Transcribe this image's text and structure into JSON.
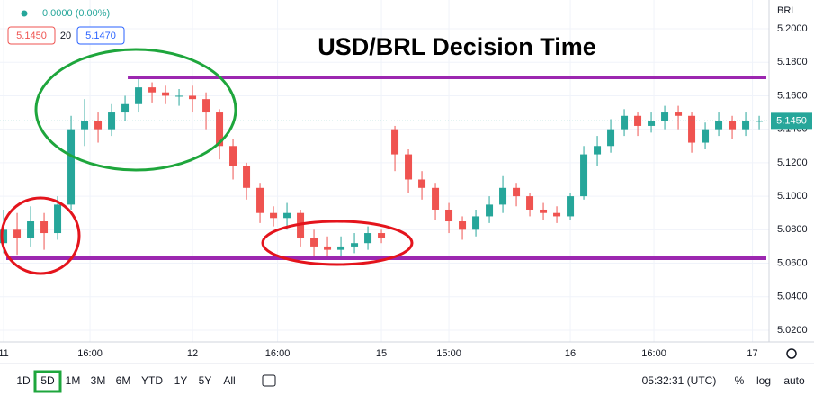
{
  "chart_data": {
    "type": "candlestick",
    "title": "USD/BRL Decision Time",
    "symbol_currency": "BRL",
    "change": "0.0000 (0.00%)",
    "bid": "5.1450",
    "spread": "20",
    "ask": "5.1470",
    "x": [
      0,
      1,
      2,
      3,
      4,
      5,
      6,
      7,
      8,
      9,
      10,
      11,
      12,
      13,
      14,
      15,
      16,
      17,
      18,
      19,
      20,
      21,
      22,
      23,
      24,
      25,
      26,
      27,
      28,
      29,
      30,
      31,
      32,
      33,
      34,
      35,
      36,
      37,
      38,
      39,
      40,
      41,
      42,
      43,
      44,
      45,
      46,
      47,
      48,
      49,
      50,
      51,
      52,
      53,
      54,
      55,
      56
    ],
    "open": [
      5.072,
      5.08,
      5.075,
      5.085,
      5.078,
      5.095,
      5.14,
      5.145,
      5.14,
      5.15,
      5.155,
      5.165,
      5.162,
      5.16,
      5.16,
      5.158,
      5.15,
      5.13,
      5.118,
      5.105,
      5.09,
      5.087,
      5.09,
      5.075,
      5.07,
      5.068,
      5.07,
      5.072,
      5.078,
      5.14,
      5.125,
      5.11,
      5.105,
      5.092,
      5.085,
      5.08,
      5.088,
      5.095,
      5.105,
      5.1,
      5.092,
      5.09,
      5.088,
      5.1,
      5.125,
      5.13,
      5.14,
      5.148,
      5.142,
      5.145,
      5.15,
      5.148,
      5.132,
      5.14,
      5.145,
      5.14,
      5.145
    ],
    "high": [
      5.092,
      5.09,
      5.094,
      5.09,
      5.1,
      5.148,
      5.158,
      5.15,
      5.155,
      5.16,
      5.17,
      5.168,
      5.166,
      5.164,
      5.166,
      5.162,
      5.152,
      5.134,
      5.12,
      5.108,
      5.094,
      5.096,
      5.092,
      5.08,
      5.076,
      5.076,
      5.078,
      5.082,
      5.08,
      5.142,
      5.128,
      5.115,
      5.108,
      5.096,
      5.088,
      5.092,
      5.1,
      5.112,
      5.108,
      5.102,
      5.096,
      5.094,
      5.102,
      5.13,
      5.136,
      5.146,
      5.152,
      5.15,
      5.15,
      5.154,
      5.154,
      5.15,
      5.144,
      5.15,
      5.148,
      5.15,
      5.148
    ],
    "low": [
      5.066,
      5.065,
      5.07,
      5.068,
      5.074,
      5.092,
      5.13,
      5.132,
      5.136,
      5.145,
      5.15,
      5.156,
      5.155,
      5.154,
      5.15,
      5.14,
      5.122,
      5.11,
      5.098,
      5.084,
      5.082,
      5.08,
      5.07,
      5.064,
      5.063,
      5.064,
      5.066,
      5.068,
      5.072,
      5.115,
      5.102,
      5.098,
      5.086,
      5.078,
      5.074,
      5.076,
      5.084,
      5.09,
      5.094,
      5.088,
      5.086,
      5.084,
      5.086,
      5.098,
      5.118,
      5.126,
      5.136,
      5.136,
      5.138,
      5.14,
      5.14,
      5.126,
      5.128,
      5.136,
      5.134,
      5.136,
      5.14
    ],
    "close": [
      5.08,
      5.075,
      5.085,
      5.078,
      5.095,
      5.14,
      5.145,
      5.14,
      5.15,
      5.155,
      5.165,
      5.162,
      5.16,
      5.16,
      5.158,
      5.15,
      5.13,
      5.118,
      5.105,
      5.09,
      5.087,
      5.09,
      5.075,
      5.07,
      5.068,
      5.07,
      5.072,
      5.078,
      5.075,
      5.125,
      5.11,
      5.105,
      5.092,
      5.085,
      5.08,
      5.088,
      5.095,
      5.105,
      5.1,
      5.092,
      5.09,
      5.088,
      5.1,
      5.125,
      5.13,
      5.14,
      5.148,
      5.142,
      5.145,
      5.15,
      5.148,
      5.132,
      5.14,
      5.145,
      5.14,
      5.145,
      5.145
    ],
    "up_color": "#26a69a",
    "down_color": "#ef5350",
    "xlim": [
      -0.27,
      56.73
    ],
    "ylim": [
      5.013,
      5.2172
    ],
    "xticks": [
      {
        "value": 0,
        "label": "11"
      },
      {
        "value": 6.4,
        "label": "16:00"
      },
      {
        "value": 14,
        "label": "12"
      },
      {
        "value": 20.3,
        "label": "16:00"
      },
      {
        "value": 28,
        "label": "15"
      },
      {
        "value": 33,
        "label": "15:00"
      },
      {
        "value": 42,
        "label": "16"
      },
      {
        "value": 48.2,
        "label": "16:00"
      },
      {
        "value": 55.5,
        "label": "17"
      }
    ],
    "yticks": [
      {
        "value": 5.2,
        "label": "5.2000"
      },
      {
        "value": 5.18,
        "label": "5.1800"
      },
      {
        "value": 5.16,
        "label": "5.1600"
      },
      {
        "value": 5.14,
        "label": "5.1400"
      },
      {
        "value": 5.12,
        "label": "5.1200"
      },
      {
        "value": 5.1,
        "label": "5.1000"
      },
      {
        "value": 5.08,
        "label": "5.0800"
      },
      {
        "value": 5.06,
        "label": "5.0600"
      },
      {
        "value": 5.04,
        "label": "5.0400"
      },
      {
        "value": 5.02,
        "label": "5.0200"
      }
    ],
    "grid": true,
    "levels": [
      {
        "value": 5.171,
        "x_start": 9.2,
        "color": "#9c27b0"
      },
      {
        "value": 5.063,
        "x_start": 0.2,
        "color": "#9c27b0"
      }
    ],
    "last_price": {
      "value": 5.145,
      "label": "5.1450"
    }
  },
  "toolbar": {
    "ranges": [
      "1D",
      "5D",
      "1M",
      "3M",
      "6M",
      "YTD",
      "1Y",
      "5Y",
      "All"
    ],
    "time": "05:32:31 (UTC)",
    "options": [
      "%",
      "log",
      "auto"
    ]
  }
}
